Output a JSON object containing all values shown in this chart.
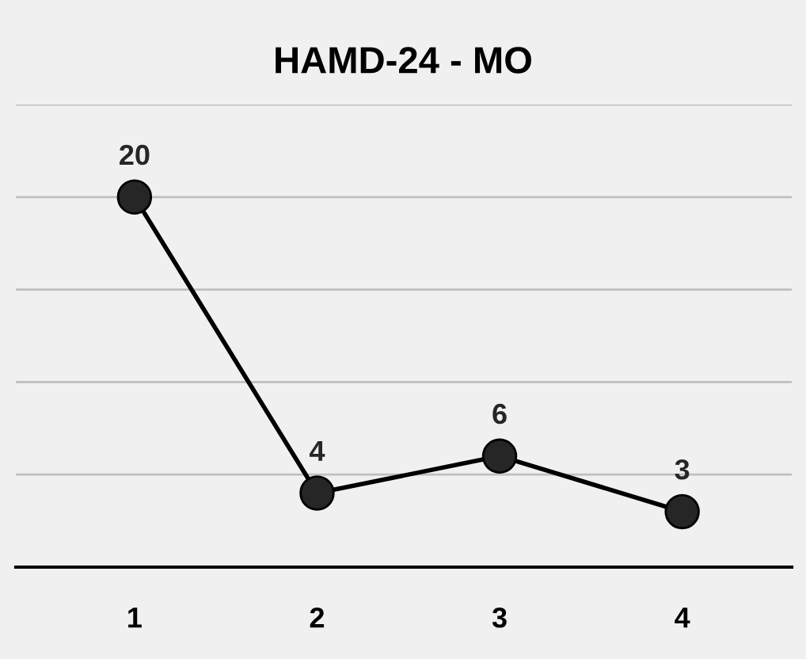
{
  "chart_data": {
    "type": "line",
    "title": "HAMD-24 - MO",
    "categories": [
      "1",
      "2",
      "3",
      "4"
    ],
    "series": [
      {
        "color": "#000000",
        "values": [
          20,
          4,
          6,
          3
        ]
      }
    ],
    "ylim": [
      0,
      25
    ],
    "yticks": [
      {
        "value": 0,
        "label": null
      },
      {
        "value": 5,
        "label": null
      },
      {
        "value": 10,
        "label": null
      },
      {
        "value": 15,
        "label": null
      },
      {
        "value": 20,
        "label": null
      },
      {
        "value": 25,
        "label": null
      }
    ],
    "tick_labels": "x",
    "grid": "y",
    "marker": "circle",
    "line_style": "solid",
    "data_labels": true,
    "legend": false
  }
}
